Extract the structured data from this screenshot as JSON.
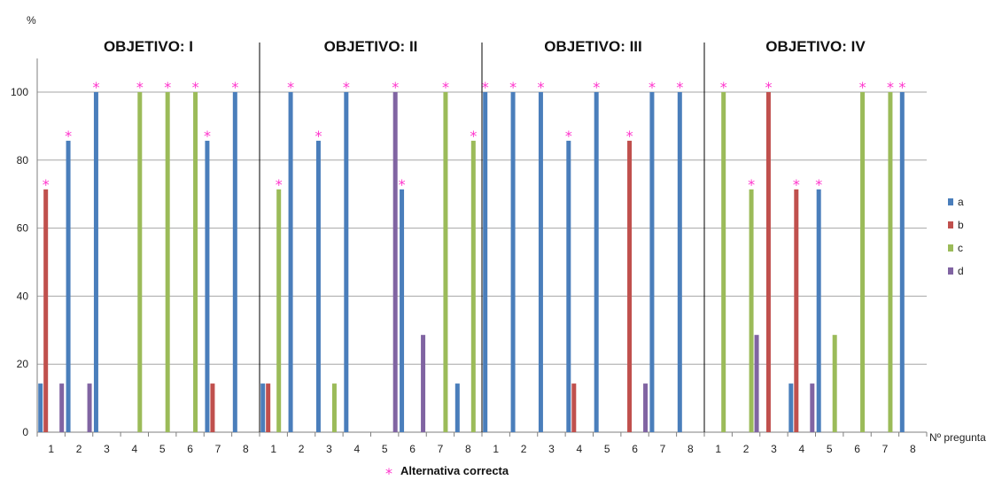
{
  "chart_data": {
    "type": "bar",
    "ylabel": "%",
    "xlabel": "Nº pregunta",
    "ylim": [
      0,
      100
    ],
    "yticks": [
      0,
      20,
      40,
      60,
      80,
      100
    ],
    "grid": true,
    "legend_position": "right",
    "series": [
      {
        "name": "a",
        "color": "#4a7ebb"
      },
      {
        "name": "b",
        "color": "#c0504d"
      },
      {
        "name": "c",
        "color": "#9bbb59"
      },
      {
        "name": "d",
        "color": "#8064a2"
      }
    ],
    "marker_symbol": "*",
    "marker_color": "#ff33cc",
    "footnote": "Alternativa correcta",
    "groups": [
      {
        "title": "OBJETIVO: I",
        "questions": [
          {
            "label": "1",
            "values": [
              14.3,
              71.4,
              0,
              14.3
            ],
            "correct": "b"
          },
          {
            "label": "2",
            "values": [
              85.7,
              0,
              0,
              14.3
            ],
            "correct": "a"
          },
          {
            "label": "3",
            "values": [
              100,
              0,
              0,
              0
            ],
            "correct": "a"
          },
          {
            "label": "4",
            "values": [
              0,
              0,
              100,
              0
            ],
            "correct": "c"
          },
          {
            "label": "5",
            "values": [
              0,
              0,
              100,
              0
            ],
            "correct": "c"
          },
          {
            "label": "6",
            "values": [
              0,
              0,
              100,
              0
            ],
            "correct": "c"
          },
          {
            "label": "7",
            "values": [
              85.7,
              14.3,
              0,
              0
            ],
            "correct": "a"
          },
          {
            "label": "8",
            "values": [
              100,
              0,
              0,
              0
            ],
            "correct": "a"
          }
        ]
      },
      {
        "title": "OBJETIVO: II",
        "questions": [
          {
            "label": "1",
            "values": [
              14.3,
              14.3,
              71.4,
              0
            ],
            "correct": "c"
          },
          {
            "label": "2",
            "values": [
              100,
              0,
              0,
              0
            ],
            "correct": "a"
          },
          {
            "label": "3",
            "values": [
              85.7,
              0,
              14.3,
              0
            ],
            "correct": "a"
          },
          {
            "label": "4",
            "values": [
              100,
              0,
              0,
              0
            ],
            "correct": "a"
          },
          {
            "label": "5",
            "values": [
              0,
              0,
              0,
              100
            ],
            "correct": "d"
          },
          {
            "label": "6",
            "values": [
              71.4,
              0,
              0,
              28.6
            ],
            "correct": "a"
          },
          {
            "label": "7",
            "values": [
              0,
              0,
              100,
              0
            ],
            "correct": "c"
          },
          {
            "label": "8",
            "values": [
              14.3,
              0,
              85.7,
              0
            ],
            "correct": "c"
          }
        ]
      },
      {
        "title": "OBJETIVO: III",
        "questions": [
          {
            "label": "1",
            "values": [
              100,
              0,
              0,
              0
            ],
            "correct": "a"
          },
          {
            "label": "2",
            "values": [
              100,
              0,
              0,
              0
            ],
            "correct": "a"
          },
          {
            "label": "3",
            "values": [
              100,
              0,
              0,
              0
            ],
            "correct": "a"
          },
          {
            "label": "4",
            "values": [
              85.7,
              14.3,
              0,
              0
            ],
            "correct": "a"
          },
          {
            "label": "5",
            "values": [
              100,
              0,
              0,
              0
            ],
            "correct": "a"
          },
          {
            "label": "6",
            "values": [
              0,
              85.7,
              0,
              14.3
            ],
            "correct": "b"
          },
          {
            "label": "7",
            "values": [
              100,
              0,
              0,
              0
            ],
            "correct": "a"
          },
          {
            "label": "8",
            "values": [
              100,
              0,
              0,
              0
            ],
            "correct": "a"
          }
        ]
      },
      {
        "title": "OBJETIVO: IV",
        "questions": [
          {
            "label": "1",
            "values": [
              0,
              0,
              100,
              0
            ],
            "correct": "c"
          },
          {
            "label": "2",
            "values": [
              0,
              0,
              71.4,
              28.6
            ],
            "correct": "c"
          },
          {
            "label": "3",
            "values": [
              0,
              100,
              0,
              0
            ],
            "correct": "b"
          },
          {
            "label": "4",
            "values": [
              14.3,
              71.4,
              0,
              14.3
            ],
            "correct": "b"
          },
          {
            "label": "5",
            "values": [
              71.4,
              0,
              28.6,
              0
            ],
            "correct": "a"
          },
          {
            "label": "6",
            "values": [
              0,
              0,
              100,
              0
            ],
            "correct": "c"
          },
          {
            "label": "7",
            "values": [
              0,
              0,
              100,
              0
            ],
            "correct": "c"
          },
          {
            "label": "8",
            "values": [
              100,
              0,
              0,
              0
            ],
            "correct": "a"
          }
        ]
      }
    ]
  }
}
